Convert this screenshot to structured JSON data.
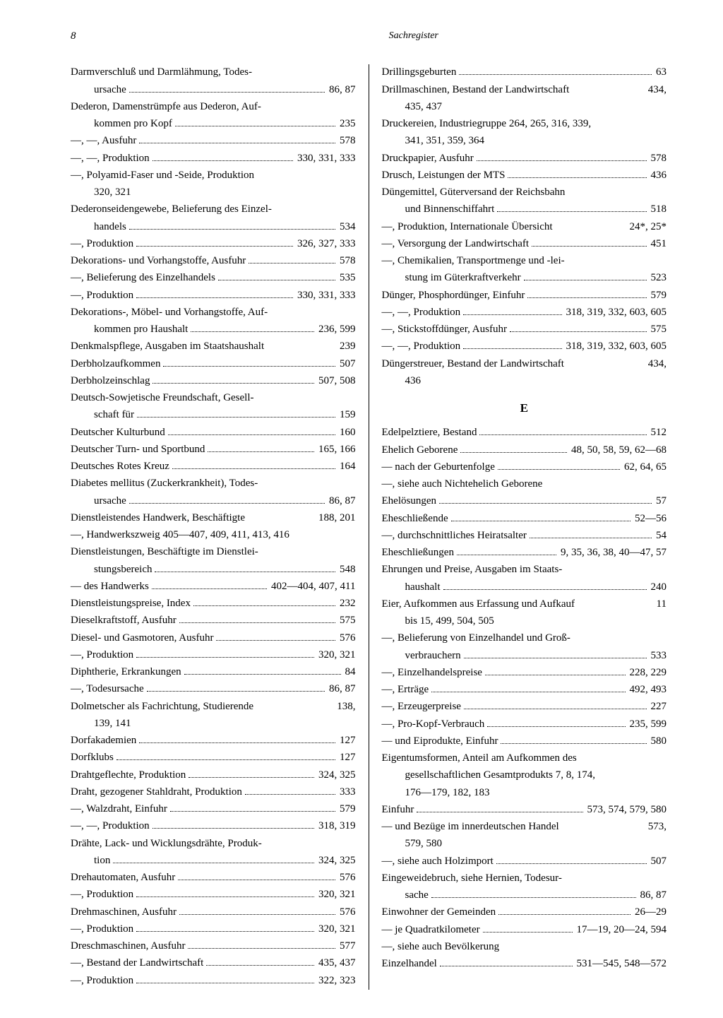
{
  "header": {
    "page_number": "8",
    "title": "Sachregister"
  },
  "styles": {
    "font_family": "Georgia, serif",
    "font_size_body": 15,
    "font_size_heading": 17,
    "text_color": "#000000",
    "background_color": "#ffffff",
    "column_rule_color": "#000000"
  },
  "left_column": [
    {
      "text": "Darmverschluß und Darmlähmung, Todes-",
      "pages": "",
      "dots": false
    },
    {
      "text": "ursache",
      "pages": "86, 87",
      "dots": true,
      "indent": true
    },
    {
      "text": "Dederon, Damenstrümpfe aus Dederon, Auf-",
      "pages": "",
      "dots": false
    },
    {
      "text": "kommen pro Kopf",
      "pages": "235",
      "dots": true,
      "indent": true
    },
    {
      "text": "—, —, Ausfuhr",
      "pages": "578",
      "dots": true
    },
    {
      "text": "—, —, Produktion",
      "pages": "330, 331, 333",
      "dots": true
    },
    {
      "text": "—, Polyamid-Faser und -Seide, Produktion",
      "pages": "",
      "dots": false
    },
    {
      "text": "320, 321",
      "pages": "",
      "dots": false,
      "indent": true
    },
    {
      "text": "Dederonseidengewebe, Belieferung des Einzel-",
      "pages": "",
      "dots": false
    },
    {
      "text": "handels",
      "pages": "534",
      "dots": true,
      "indent": true
    },
    {
      "text": "—, Produktion",
      "pages": "326, 327, 333",
      "dots": true
    },
    {
      "text": "Dekorations- und Vorhangstoffe, Ausfuhr",
      "pages": "578",
      "dots": true
    },
    {
      "text": "—, Belieferung des Einzelhandels",
      "pages": "535",
      "dots": true
    },
    {
      "text": "—, Produktion",
      "pages": "330, 331, 333",
      "dots": true
    },
    {
      "text": "Dekorations-, Möbel- und Vorhangstoffe, Auf-",
      "pages": "",
      "dots": false
    },
    {
      "text": "kommen pro Haushalt",
      "pages": "236, 599",
      "dots": true,
      "indent": true
    },
    {
      "text": "Denkmalspflege, Ausgaben im Staatshaushalt",
      "pages": "239",
      "dots": false,
      "space": true
    },
    {
      "text": "Derbholzaufkommen",
      "pages": "507",
      "dots": true
    },
    {
      "text": "Derbholzeinschlag",
      "pages": "507, 508",
      "dots": true
    },
    {
      "text": "Deutsch-Sowjetische Freundschaft, Gesell-",
      "pages": "",
      "dots": false
    },
    {
      "text": "schaft für",
      "pages": "159",
      "dots": true,
      "indent": true
    },
    {
      "text": "Deutscher Kulturbund",
      "pages": "160",
      "dots": true
    },
    {
      "text": "Deutscher Turn- und Sportbund",
      "pages": "165, 166",
      "dots": true
    },
    {
      "text": "Deutsches Rotes Kreuz",
      "pages": "164",
      "dots": true
    },
    {
      "text": "Diabetes mellitus (Zuckerkrankheit), Todes-",
      "pages": "",
      "dots": false
    },
    {
      "text": "ursache",
      "pages": "86, 87",
      "dots": true,
      "indent": true
    },
    {
      "text": "Dienstleistendes Handwerk, Beschäftigte",
      "pages": "188, 201",
      "dots": false,
      "space": true
    },
    {
      "text": "—, Handwerkszweig 405—407, 409, 411, 413, 416",
      "pages": "",
      "dots": false
    },
    {
      "text": "Dienstleistungen, Beschäftigte im Dienstlei-",
      "pages": "",
      "dots": false
    },
    {
      "text": "stungsbereich",
      "pages": "548",
      "dots": true,
      "indent": true
    },
    {
      "text": "— des Handwerks",
      "pages": "402—404, 407, 411",
      "dots": true
    },
    {
      "text": "Dienstleistungspreise, Index",
      "pages": "232",
      "dots": true
    },
    {
      "text": "Dieselkraftstoff, Ausfuhr",
      "pages": "575",
      "dots": true
    },
    {
      "text": "Diesel- und Gasmotoren, Ausfuhr",
      "pages": "576",
      "dots": true
    },
    {
      "text": "—, Produktion",
      "pages": "320, 321",
      "dots": true
    },
    {
      "text": "Diphtherie, Erkrankungen",
      "pages": "84",
      "dots": true
    },
    {
      "text": "—, Todesursache",
      "pages": "86, 87",
      "dots": true
    },
    {
      "text": "Dolmetscher als Fachrichtung, Studierende",
      "pages": "138,",
      "dots": false,
      "space": true
    },
    {
      "text": "139, 141",
      "pages": "",
      "dots": false,
      "indent": true
    },
    {
      "text": "Dorfakademien",
      "pages": "127",
      "dots": true
    },
    {
      "text": "Dorfklubs",
      "pages": "127",
      "dots": true
    },
    {
      "text": "Drahtgeflechte, Produktion",
      "pages": "324, 325",
      "dots": true
    },
    {
      "text": "Draht, gezogener Stahldraht, Produktion",
      "pages": "333",
      "dots": true
    },
    {
      "text": "—, Walzdraht, Einfuhr",
      "pages": "579",
      "dots": true
    },
    {
      "text": "—, —, Produktion",
      "pages": "318, 319",
      "dots": true
    },
    {
      "text": "Drähte, Lack- und Wicklungsdrähte, Produk-",
      "pages": "",
      "dots": false
    },
    {
      "text": "tion",
      "pages": "324, 325",
      "dots": true,
      "indent": true
    },
    {
      "text": "Drehautomaten, Ausfuhr",
      "pages": "576",
      "dots": true
    },
    {
      "text": "—, Produktion",
      "pages": "320, 321",
      "dots": true
    },
    {
      "text": "Drehmaschinen, Ausfuhr",
      "pages": "576",
      "dots": true
    },
    {
      "text": "—, Produktion",
      "pages": "320, 321",
      "dots": true
    },
    {
      "text": "Dreschmaschinen, Ausfuhr",
      "pages": "577",
      "dots": true
    },
    {
      "text": "—, Bestand der Landwirtschaft",
      "pages": "435, 437",
      "dots": true
    },
    {
      "text": "—, Produktion",
      "pages": "322, 323",
      "dots": true
    }
  ],
  "right_column": [
    {
      "text": "Drillingsgeburten",
      "pages": "63",
      "dots": true
    },
    {
      "text": "Drillmaschinen, Bestand der Landwirtschaft",
      "pages": "434,",
      "dots": false,
      "space": true
    },
    {
      "text": "435, 437",
      "pages": "",
      "dots": false,
      "indent": true
    },
    {
      "text": "Druckereien, Industriegruppe 264, 265, 316, 339,",
      "pages": "",
      "dots": false
    },
    {
      "text": "341, 351, 359, 364",
      "pages": "",
      "dots": false,
      "indent": true
    },
    {
      "text": "Druckpapier, Ausfuhr",
      "pages": "578",
      "dots": true
    },
    {
      "text": "Drusch, Leistungen der MTS",
      "pages": "436",
      "dots": true
    },
    {
      "text": "Düngemittel, Güterversand der Reichsbahn",
      "pages": "",
      "dots": false
    },
    {
      "text": "und Binnenschiffahrt",
      "pages": "518",
      "dots": true,
      "indent": true
    },
    {
      "text": "—, Produktion, Internationale Übersicht",
      "pages": "24*, 25*",
      "dots": false,
      "space": true
    },
    {
      "text": "—, Versorgung der Landwirtschaft",
      "pages": "451",
      "dots": true
    },
    {
      "text": "—, Chemikalien, Transportmenge und -lei-",
      "pages": "",
      "dots": false
    },
    {
      "text": "stung im Güterkraftverkehr",
      "pages": "523",
      "dots": true,
      "indent": true
    },
    {
      "text": "Dünger, Phosphordünger, Einfuhr",
      "pages": "579",
      "dots": true
    },
    {
      "text": "—, —, Produktion",
      "pages": "318, 319, 332, 603, 605",
      "dots": true
    },
    {
      "text": "—, Stickstoffdünger, Ausfuhr",
      "pages": "575",
      "dots": true
    },
    {
      "text": "—, —, Produktion",
      "pages": "318, 319, 332, 603, 605",
      "dots": true
    },
    {
      "text": "Düngerstreuer, Bestand der Landwirtschaft",
      "pages": "434,",
      "dots": false,
      "space": true
    },
    {
      "text": "436",
      "pages": "",
      "dots": false,
      "indent": true
    },
    {
      "heading": "E"
    },
    {
      "text": "Edelpelztiere, Bestand",
      "pages": "512",
      "dots": true
    },
    {
      "text": "Ehelich Geborene",
      "pages": "48, 50, 58, 59, 62—68",
      "dots": true
    },
    {
      "text": "— nach der Geburtenfolge",
      "pages": "62, 64, 65",
      "dots": true
    },
    {
      "text": "—, siehe auch Nichtehelich Geborene",
      "pages": "",
      "dots": false
    },
    {
      "text": "Ehelösungen",
      "pages": "57",
      "dots": true
    },
    {
      "text": "Eheschließende",
      "pages": "52—56",
      "dots": true
    },
    {
      "text": "—, durchschnittliches Heiratsalter",
      "pages": "54",
      "dots": true
    },
    {
      "text": "Eheschließungen",
      "pages": "9, 35, 36, 38, 40—47, 57",
      "dots": true
    },
    {
      "text": "Ehrungen und Preise, Ausgaben im Staats-",
      "pages": "",
      "dots": false
    },
    {
      "text": "haushalt",
      "pages": "240",
      "dots": true,
      "indent": true
    },
    {
      "text": "Eier, Aufkommen aus Erfassung und Aufkauf",
      "pages": "11",
      "dots": false,
      "space": true
    },
    {
      "text": "bis 15, 499, 504, 505",
      "pages": "",
      "dots": false,
      "indent": true
    },
    {
      "text": "—, Belieferung von Einzelhandel und Groß-",
      "pages": "",
      "dots": false
    },
    {
      "text": "verbrauchern",
      "pages": "533",
      "dots": true,
      "indent": true
    },
    {
      "text": "—, Einzelhandelspreise",
      "pages": "228, 229",
      "dots": true
    },
    {
      "text": "—, Erträge",
      "pages": "492, 493",
      "dots": true
    },
    {
      "text": "—, Erzeugerpreise",
      "pages": "227",
      "dots": true
    },
    {
      "text": "—, Pro-Kopf-Verbrauch",
      "pages": "235, 599",
      "dots": true
    },
    {
      "text": "— und Eiprodukte, Einfuhr",
      "pages": "580",
      "dots": true
    },
    {
      "text": "Eigentumsformen, Anteil am Aufkommen des",
      "pages": "",
      "dots": false
    },
    {
      "text": "gesellschaftlichen Gesamtprodukts 7, 8, 174,",
      "pages": "",
      "dots": false,
      "indent": true
    },
    {
      "text": "176—179, 182, 183",
      "pages": "",
      "dots": false,
      "indent": true
    },
    {
      "text": "Einfuhr",
      "pages": "573, 574, 579, 580",
      "dots": true
    },
    {
      "text": "— und Bezüge im innerdeutschen Handel",
      "pages": "573,",
      "dots": false,
      "space": true
    },
    {
      "text": "579, 580",
      "pages": "",
      "dots": false,
      "indent": true
    },
    {
      "text": "—, siehe auch Holzimport",
      "pages": "507",
      "dots": true
    },
    {
      "text": "Eingeweidebruch, siehe Hernien, Todesur-",
      "pages": "",
      "dots": false
    },
    {
      "text": "sache",
      "pages": "86, 87",
      "dots": true,
      "indent": true
    },
    {
      "text": "Einwohner der Gemeinden",
      "pages": "26—29",
      "dots": true
    },
    {
      "text": "— je Quadratkilometer",
      "pages": "17—19, 20—24, 594",
      "dots": true
    },
    {
      "text": "—, siehe auch Bevölkerung",
      "pages": "",
      "dots": false
    },
    {
      "text": "Einzelhandel",
      "pages": "531—545, 548—572",
      "dots": true
    }
  ]
}
